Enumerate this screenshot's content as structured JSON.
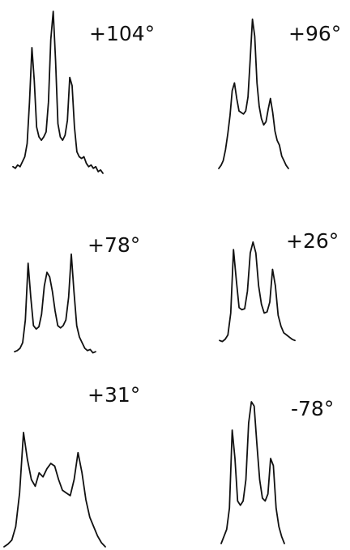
{
  "chart_data": [
    {
      "type": "line",
      "title": "+104°",
      "series": [
        {
          "values": [
            0.06,
            0.05,
            0.07,
            0.06,
            0.09,
            0.12,
            0.2,
            0.45,
            0.78,
            0.58,
            0.3,
            0.24,
            0.22,
            0.24,
            0.27,
            0.45,
            0.83,
            1.0,
            0.7,
            0.32,
            0.24,
            0.22,
            0.25,
            0.34,
            0.6,
            0.55,
            0.3,
            0.15,
            0.12,
            0.11,
            0.12,
            0.08,
            0.06,
            0.07,
            0.05,
            0.06,
            0.03,
            0.04,
            0.02
          ]
        }
      ]
    },
    {
      "type": "line",
      "title": "+96°",
      "series": [
        {
          "values": [
            0.0,
            0.02,
            0.05,
            0.12,
            0.22,
            0.34,
            0.5,
            0.55,
            0.45,
            0.37,
            0.36,
            0.35,
            0.37,
            0.46,
            0.7,
            0.96,
            0.85,
            0.55,
            0.4,
            0.32,
            0.28,
            0.3,
            0.38,
            0.45,
            0.36,
            0.24,
            0.18,
            0.15,
            0.08,
            0.05,
            0.02,
            0.0
          ]
        }
      ]
    },
    {
      "type": "line",
      "title": "+78°",
      "series": [
        {
          "values": [
            0.02,
            0.03,
            0.05,
            0.1,
            0.3,
            0.8,
            0.5,
            0.25,
            0.22,
            0.24,
            0.35,
            0.6,
            0.72,
            0.68,
            0.55,
            0.38,
            0.25,
            0.23,
            0.25,
            0.3,
            0.5,
            0.88,
            0.55,
            0.25,
            0.15,
            0.1,
            0.05,
            0.03,
            0.04,
            0.01,
            0.02
          ]
        }
      ]
    },
    {
      "type": "line",
      "title": "+26°",
      "series": [
        {
          "values": [
            0.05,
            0.04,
            0.06,
            0.1,
            0.3,
            0.88,
            0.6,
            0.35,
            0.33,
            0.34,
            0.5,
            0.85,
            0.95,
            0.85,
            0.55,
            0.38,
            0.3,
            0.31,
            0.4,
            0.7,
            0.55,
            0.28,
            0.18,
            0.12,
            0.1,
            0.08,
            0.06,
            0.05
          ]
        }
      ]
    },
    {
      "type": "line",
      "title": "+31°",
      "series": [
        {
          "values": [
            0.0,
            0.02,
            0.05,
            0.15,
            0.4,
            0.85,
            0.65,
            0.5,
            0.45,
            0.55,
            0.52,
            0.58,
            0.62,
            0.6,
            0.5,
            0.42,
            0.4,
            0.38,
            0.5,
            0.7,
            0.55,
            0.35,
            0.22,
            0.15,
            0.08,
            0.03,
            0.0
          ]
        }
      ]
    },
    {
      "type": "line",
      "title": "-78°",
      "series": [
        {
          "values": [
            0.0,
            0.05,
            0.1,
            0.25,
            0.8,
            0.6,
            0.3,
            0.27,
            0.3,
            0.45,
            0.85,
            1.0,
            0.97,
            0.7,
            0.45,
            0.32,
            0.3,
            0.35,
            0.6,
            0.55,
            0.25,
            0.12,
            0.05,
            0.0
          ]
        }
      ]
    }
  ]
}
